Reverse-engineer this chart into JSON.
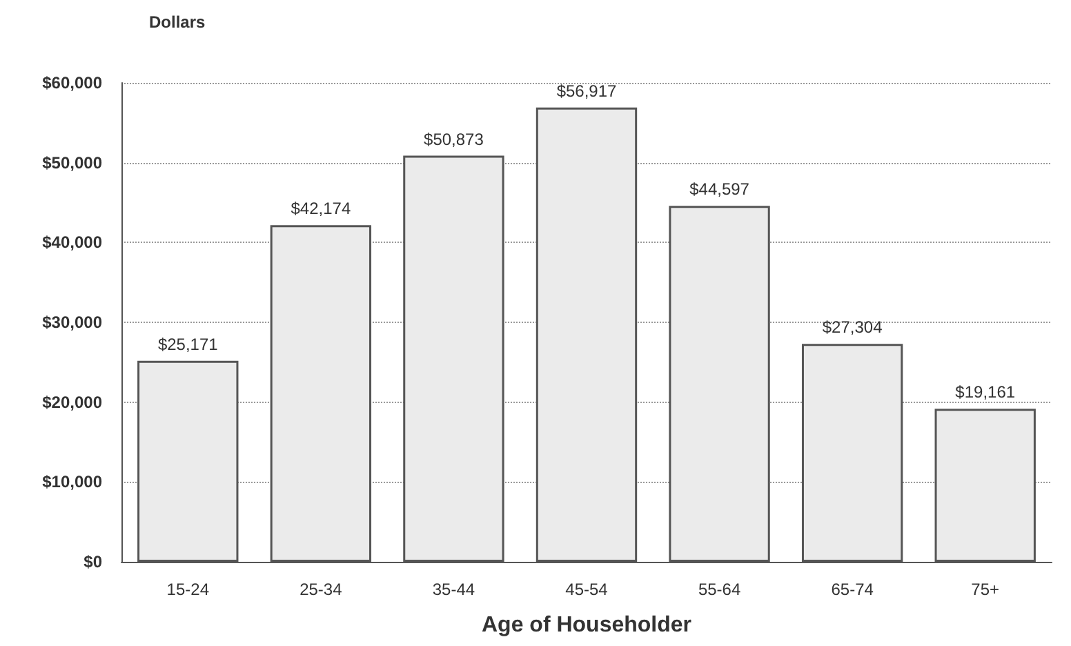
{
  "chart_data": {
    "type": "bar",
    "ylabel": "Dollars",
    "xlabel": "Age of Householder",
    "categories": [
      "15-24",
      "25-34",
      "35-44",
      "45-54",
      "55-64",
      "65-74",
      "75+"
    ],
    "values": [
      25171,
      42174,
      50873,
      56917,
      44597,
      27304,
      19161
    ],
    "value_labels": [
      "$25,171",
      "$42,174",
      "$50,873",
      "$56,917",
      "$44,597",
      "$27,304",
      "$19,161"
    ],
    "color": "#ebebeb",
    "ylim": [
      0,
      60000
    ],
    "yticks": [
      {
        "value": 0,
        "label": "$0"
      },
      {
        "value": 10000,
        "label": "$10,000"
      },
      {
        "value": 20000,
        "label": "$20,000"
      },
      {
        "value": 30000,
        "label": "$30,000"
      },
      {
        "value": 40000,
        "label": "$40,000"
      },
      {
        "value": 50000,
        "label": "$50,000"
      },
      {
        "value": 60000,
        "label": "$60,000"
      }
    ],
    "grid": "y"
  }
}
